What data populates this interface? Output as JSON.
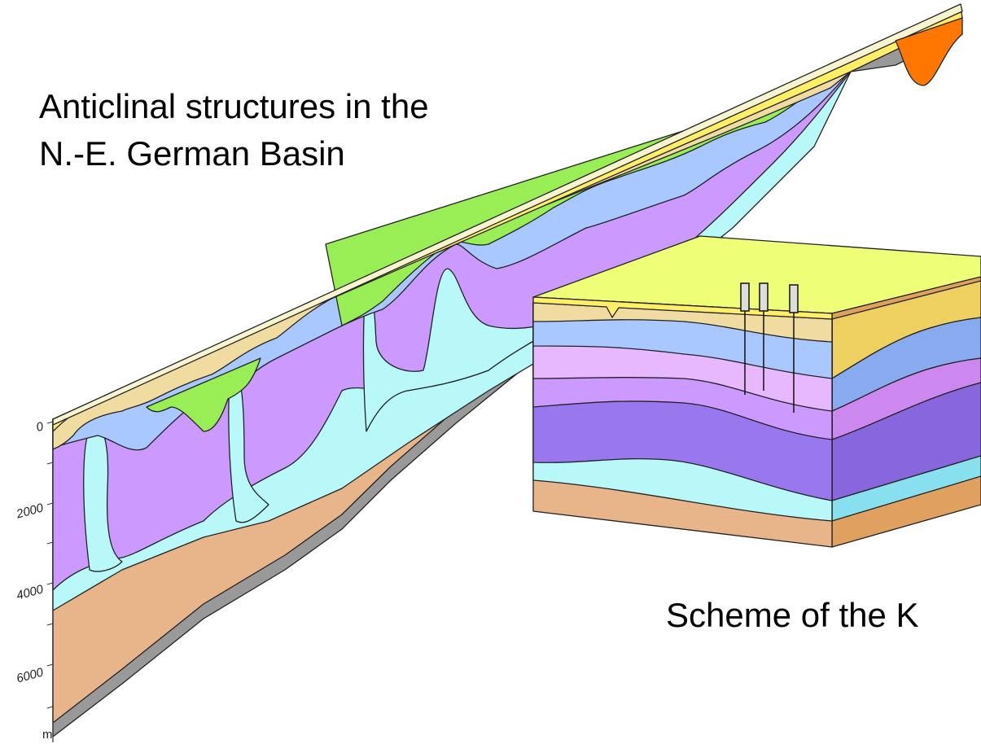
{
  "title_lines": [
    "Anticlinal structures in the",
    "N.-E. German Basin"
  ],
  "depth_axis": {
    "labels": [
      "0",
      "2000",
      "4000",
      "6000"
    ],
    "unit": "m"
  },
  "block_caption": "Scheme of the K"
}
